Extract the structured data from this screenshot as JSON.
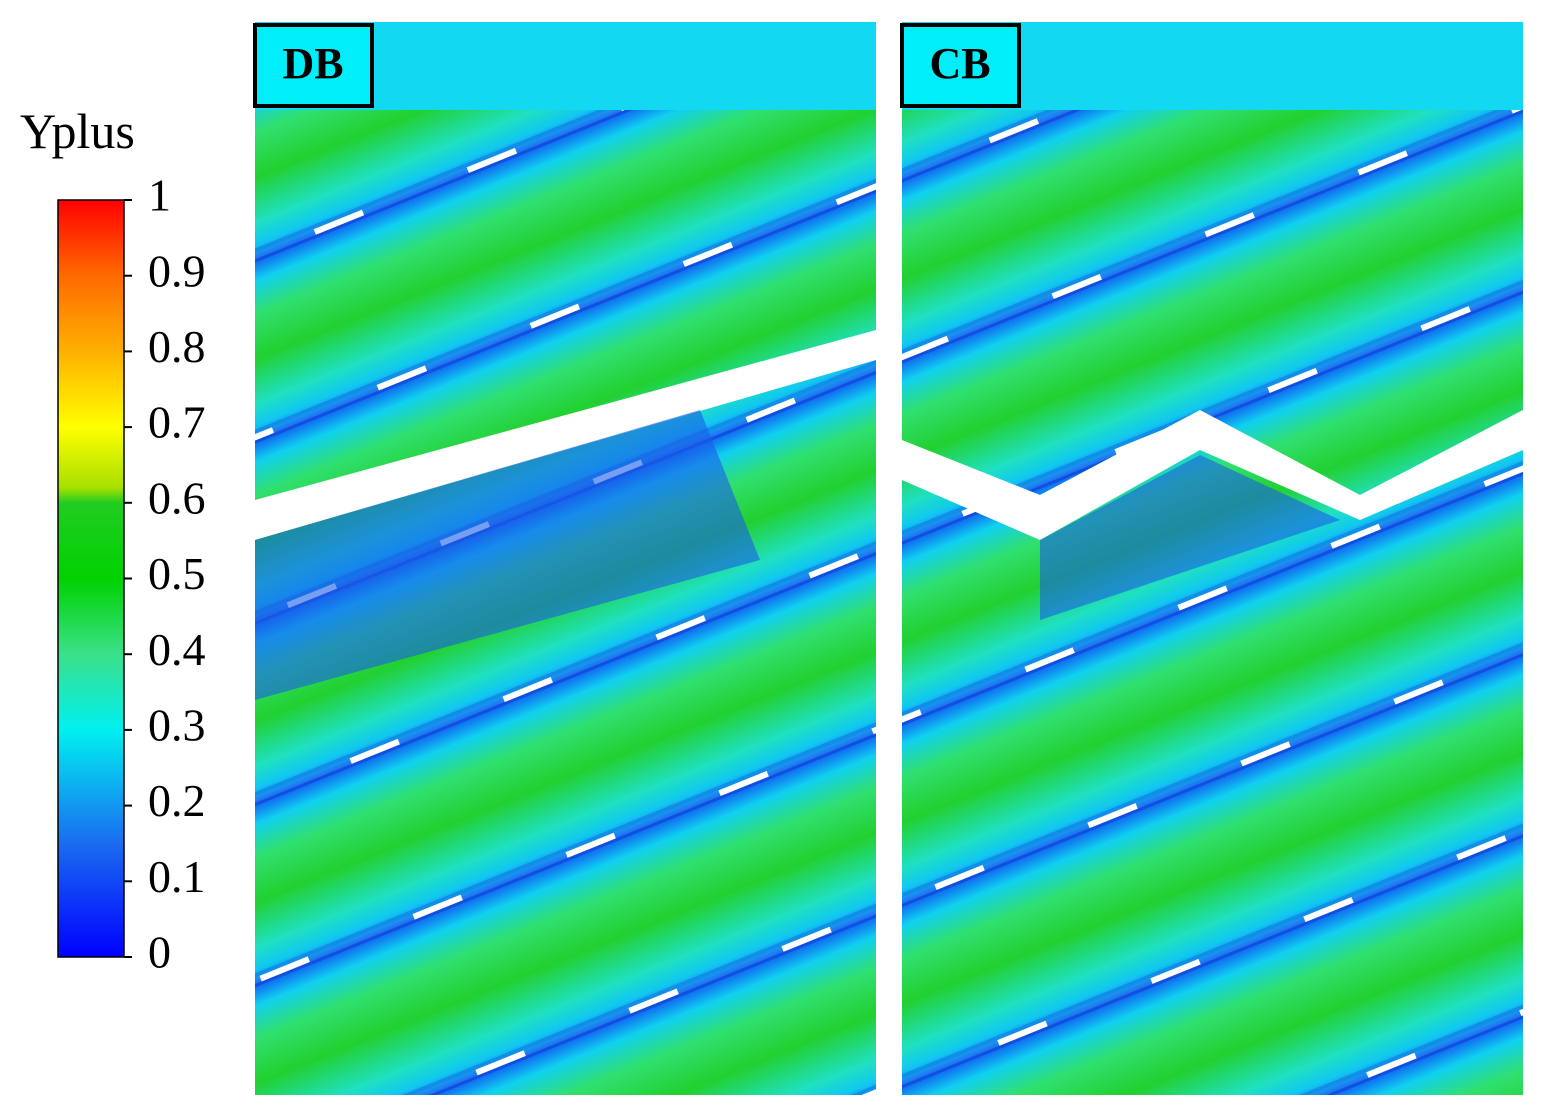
{
  "chart_data": {
    "type": "contour",
    "colorbar": {
      "title": "Yplus",
      "lim": [
        0,
        1
      ],
      "ticks": [
        0,
        0.1,
        0.2,
        0.3,
        0.4,
        0.5,
        0.6,
        0.7,
        0.8,
        0.9,
        1
      ]
    },
    "panels": [
      {
        "label": "DB"
      },
      {
        "label": "CB"
      }
    ]
  }
}
